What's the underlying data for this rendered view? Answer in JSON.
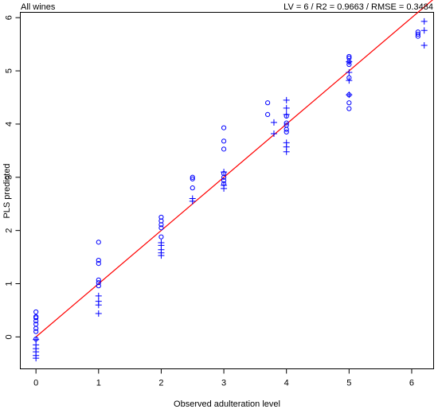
{
  "chart_data": {
    "type": "scatter",
    "title_left": "All wines",
    "title_right": "LV = 6 / R2 = 0.9663 / RMSE = 0.3484",
    "xlabel": "Observed adulteration level",
    "ylabel": "PLS predicted",
    "xlim": [
      -0.25,
      6.35
    ],
    "ylim": [
      -0.6,
      6.1
    ],
    "x_ticks": [
      0,
      1,
      2,
      3,
      4,
      5,
      6
    ],
    "y_ticks": [
      0,
      1,
      2,
      3,
      4,
      5,
      6
    ],
    "grid": false,
    "legend": "none",
    "point_color": "#0000ff",
    "line_color": "#ff0000",
    "fit_line": {
      "x": [
        0,
        6.35
      ],
      "y": [
        0,
        6.35
      ]
    },
    "series": [
      {
        "marker": "circle",
        "points": [
          [
            0,
            0.47
          ],
          [
            0,
            0.38
          ],
          [
            0,
            0.36
          ],
          [
            0,
            0.3
          ],
          [
            0,
            0.24
          ],
          [
            0,
            0.16
          ],
          [
            0,
            0.1
          ],
          [
            0,
            -0.04
          ],
          [
            1,
            1.78
          ],
          [
            1,
            1.44
          ],
          [
            1,
            1.38
          ],
          [
            1,
            1.07
          ],
          [
            1,
            1.02
          ],
          [
            1,
            0.96
          ],
          [
            2,
            2.25
          ],
          [
            2,
            2.18
          ],
          [
            2,
            2.11
          ],
          [
            2,
            2.05
          ],
          [
            2,
            1.88
          ],
          [
            2.5,
            3.0
          ],
          [
            2.5,
            2.97
          ],
          [
            2.5,
            2.8
          ],
          [
            3,
            3.93
          ],
          [
            3,
            3.68
          ],
          [
            3,
            3.53
          ],
          [
            3,
            3.07
          ],
          [
            3,
            3.0
          ],
          [
            3,
            2.94
          ],
          [
            3,
            2.88
          ],
          [
            3.7,
            4.4
          ],
          [
            3.7,
            4.18
          ],
          [
            4,
            4.15
          ],
          [
            4,
            4.02
          ],
          [
            4,
            3.98
          ],
          [
            4,
            3.9
          ],
          [
            4,
            3.85
          ],
          [
            5,
            5.27
          ],
          [
            5,
            5.24
          ],
          [
            5,
            5.17
          ],
          [
            5,
            5.12
          ],
          [
            5,
            4.87
          ],
          [
            5,
            4.55
          ],
          [
            5,
            4.4
          ],
          [
            5,
            4.29
          ],
          [
            6.1,
            5.73
          ],
          [
            6.1,
            5.69
          ],
          [
            6.1,
            5.65
          ]
        ]
      },
      {
        "marker": "plus",
        "points": [
          [
            0,
            -0.05
          ],
          [
            0,
            -0.15
          ],
          [
            0,
            -0.22
          ],
          [
            0,
            -0.28
          ],
          [
            0,
            -0.35
          ],
          [
            0,
            -0.4
          ],
          [
            1,
            0.77
          ],
          [
            1,
            0.67
          ],
          [
            1,
            0.6
          ],
          [
            1,
            0.44
          ],
          [
            2,
            1.77
          ],
          [
            2,
            1.72
          ],
          [
            2,
            1.64
          ],
          [
            2,
            1.58
          ],
          [
            2,
            1.53
          ],
          [
            2.5,
            2.6
          ],
          [
            2.5,
            2.55
          ],
          [
            3,
            3.1
          ],
          [
            3,
            2.85
          ],
          [
            3,
            2.79
          ],
          [
            3.8,
            4.03
          ],
          [
            3.8,
            3.82
          ],
          [
            4,
            4.45
          ],
          [
            4,
            4.3
          ],
          [
            4,
            4.18
          ],
          [
            4,
            3.65
          ],
          [
            4,
            3.57
          ],
          [
            4,
            3.48
          ],
          [
            5,
            5.17
          ],
          [
            5,
            4.97
          ],
          [
            5,
            4.82
          ],
          [
            5,
            4.55
          ],
          [
            6.2,
            5.93
          ],
          [
            6.2,
            5.76
          ],
          [
            6.2,
            5.48
          ]
        ]
      }
    ]
  }
}
